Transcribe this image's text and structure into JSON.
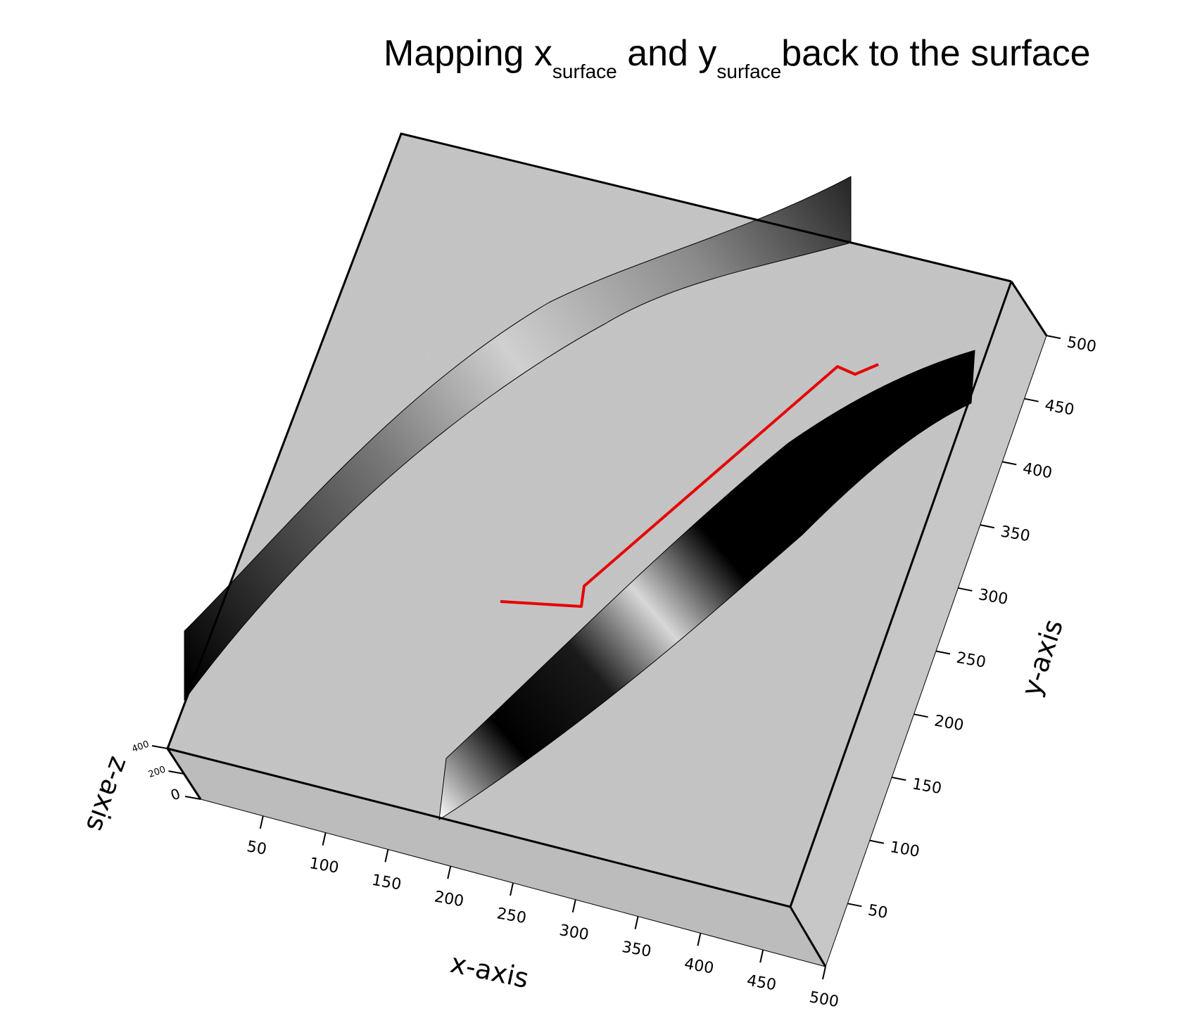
{
  "title": {
    "main": "Mapping x",
    "sub1": "surface",
    "mid": " and y",
    "sub2": "surface",
    "end": "back to the surface"
  },
  "axes": {
    "x_label": "x-axis",
    "y_label": "y-axis",
    "z_label": "z-axis",
    "x_ticks": [
      "50",
      "100",
      "150",
      "200",
      "250",
      "300",
      "350",
      "400",
      "450",
      "500"
    ],
    "y_ticks": [
      "50",
      "100",
      "150",
      "200",
      "250",
      "300",
      "350",
      "400",
      "450",
      "500"
    ],
    "z_ticks": [
      "0",
      "200",
      "400"
    ]
  },
  "colors": {
    "path": "#e60000",
    "surface": "#bdbdbd",
    "edge": "#000000"
  }
}
